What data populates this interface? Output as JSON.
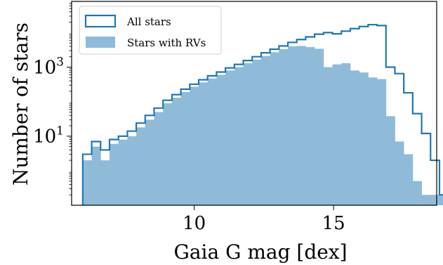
{
  "chart_data": {
    "type": "histogram",
    "xlabel": "Gaia G mag [dex]",
    "ylabel": "Number of stars",
    "xlim": [
      5.6,
      18.7
    ],
    "ylim": [
      0.1,
      80000
    ],
    "yscale": "log",
    "grid": false,
    "legend_position": "top-left",
    "x_ticks": [
      {
        "value": 10,
        "label": "10"
      },
      {
        "value": 15,
        "label": "15"
      }
    ],
    "y_ticks": [
      {
        "value": 10,
        "label": "10",
        "exp": "1"
      },
      {
        "value": 1000,
        "label": "10",
        "exp": "3"
      }
    ],
    "bin_width": 0.32,
    "bin_start": 6.0,
    "series": [
      {
        "name": "All stars",
        "style": "step",
        "color": "#1f77b4",
        "values": [
          3,
          7,
          4,
          8,
          10,
          14,
          24,
          40,
          65,
          110,
          160,
          230,
          320,
          430,
          560,
          720,
          950,
          1200,
          1550,
          2000,
          2600,
          3300,
          4100,
          5200,
          6300,
          7500,
          9000,
          10000,
          9200,
          11000,
          13000,
          15000,
          17000,
          16000,
          1000,
          650,
          180,
          45,
          12,
          2,
          0.2
        ]
      },
      {
        "name": "Stars with RVs",
        "style": "filled",
        "color": "#8fbbd9",
        "values": [
          2,
          5,
          2,
          6,
          8,
          10,
          18,
          30,
          50,
          90,
          130,
          190,
          270,
          360,
          470,
          600,
          800,
          1000,
          1300,
          1650,
          2100,
          2700,
          3300,
          4000,
          4100,
          3800,
          3400,
          1000,
          1200,
          1300,
          800,
          700,
          500,
          450,
          38,
          7,
          3,
          0.5,
          0.2,
          0.2,
          0.2
        ]
      }
    ]
  }
}
